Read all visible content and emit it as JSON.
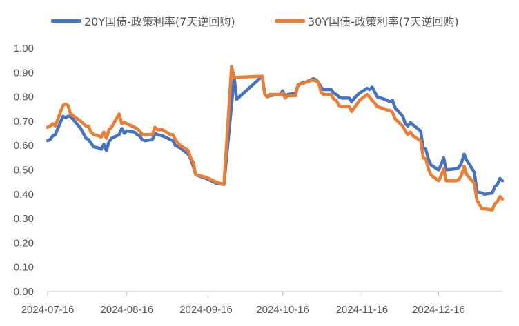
{
  "chart_data": {
    "type": "line",
    "title": "",
    "xlabel": "",
    "ylabel": "",
    "ylim": [
      0,
      1.0
    ],
    "xlim": [
      "2024-07-16",
      "2025-01-10"
    ],
    "grid": false,
    "legend_position": "top",
    "y_ticks": [
      "0.00",
      "0.10",
      "0.20",
      "0.30",
      "0.40",
      "0.50",
      "0.60",
      "0.70",
      "0.80",
      "0.90",
      "1.00"
    ],
    "x_ticks": [
      "2024-07-16",
      "2024-08-16",
      "2024-09-16",
      "2024-10-16",
      "2024-11-16",
      "2024-12-16"
    ],
    "series": [
      {
        "name": "20Y国债-政策利率(7天逆回购)",
        "color": "#4472C4",
        "points": [
          [
            "2024-07-16",
            0.62
          ],
          [
            "2024-07-17",
            0.625
          ],
          [
            "2024-07-18",
            0.64
          ],
          [
            "2024-07-19",
            0.645
          ],
          [
            "2024-07-22",
            0.72
          ],
          [
            "2024-07-23",
            0.715
          ],
          [
            "2024-07-24",
            0.72
          ],
          [
            "2024-07-25",
            0.72
          ],
          [
            "2024-07-29",
            0.67
          ],
          [
            "2024-07-31",
            0.63
          ],
          [
            "2024-08-01",
            0.625
          ],
          [
            "2024-08-02",
            0.61
          ],
          [
            "2024-08-03",
            0.595
          ],
          [
            "2024-08-05",
            0.59
          ],
          [
            "2024-08-06",
            0.585
          ],
          [
            "2024-08-07",
            0.605
          ],
          [
            "2024-08-08",
            0.58
          ],
          [
            "2024-08-09",
            0.615
          ],
          [
            "2024-08-10",
            0.63
          ],
          [
            "2024-08-13",
            0.645
          ],
          [
            "2024-08-14",
            0.67
          ],
          [
            "2024-08-15",
            0.65
          ],
          [
            "2024-08-16",
            0.66
          ],
          [
            "2024-08-19",
            0.655
          ],
          [
            "2024-08-20",
            0.645
          ],
          [
            "2024-08-21",
            0.64
          ],
          [
            "2024-08-22",
            0.625
          ],
          [
            "2024-08-23",
            0.62
          ],
          [
            "2024-08-26",
            0.625
          ],
          [
            "2024-08-27",
            0.65
          ],
          [
            "2024-08-28",
            0.645
          ],
          [
            "2024-08-30",
            0.64
          ],
          [
            "2024-09-02",
            0.625
          ],
          [
            "2024-09-03",
            0.62
          ],
          [
            "2024-09-04",
            0.6
          ],
          [
            "2024-09-05",
            0.595
          ],
          [
            "2024-09-06",
            0.59
          ],
          [
            "2024-09-09",
            0.565
          ],
          [
            "2024-09-10",
            0.545
          ],
          [
            "2024-09-11",
            0.515
          ],
          [
            "2024-09-12",
            0.48
          ],
          [
            "2024-09-16",
            0.465
          ],
          [
            "2024-09-18",
            0.455
          ],
          [
            "2024-09-20",
            0.445
          ],
          [
            "2024-09-23",
            0.44
          ],
          [
            "2024-09-27",
            0.88
          ],
          [
            "2024-09-28",
            0.79
          ],
          [
            "2024-10-08",
            0.885
          ],
          [
            "2024-10-09",
            0.81
          ],
          [
            "2024-10-10",
            0.8
          ],
          [
            "2024-10-11",
            0.805
          ],
          [
            "2024-10-14",
            0.81
          ],
          [
            "2024-10-15",
            0.81
          ],
          [
            "2024-10-16",
            0.825
          ],
          [
            "2024-10-17",
            0.8
          ],
          [
            "2024-10-18",
            0.81
          ],
          [
            "2024-10-21",
            0.815
          ],
          [
            "2024-10-22",
            0.845
          ],
          [
            "2024-10-23",
            0.855
          ],
          [
            "2024-10-24",
            0.86
          ],
          [
            "2024-10-25",
            0.86
          ],
          [
            "2024-10-28",
            0.875
          ],
          [
            "2024-10-29",
            0.87
          ],
          [
            "2024-10-30",
            0.86
          ],
          [
            "2024-10-31",
            0.84
          ],
          [
            "2024-11-01",
            0.83
          ],
          [
            "2024-11-04",
            0.83
          ],
          [
            "2024-11-05",
            0.815
          ],
          [
            "2024-11-06",
            0.81
          ],
          [
            "2024-11-07",
            0.8
          ],
          [
            "2024-11-08",
            0.795
          ],
          [
            "2024-11-11",
            0.795
          ],
          [
            "2024-11-12",
            0.78
          ],
          [
            "2024-11-13",
            0.795
          ],
          [
            "2024-11-14",
            0.805
          ],
          [
            "2024-11-15",
            0.815
          ],
          [
            "2024-11-18",
            0.835
          ],
          [
            "2024-11-19",
            0.83
          ],
          [
            "2024-11-20",
            0.84
          ],
          [
            "2024-11-21",
            0.82
          ],
          [
            "2024-11-22",
            0.8
          ],
          [
            "2024-11-25",
            0.79
          ],
          [
            "2024-11-26",
            0.785
          ],
          [
            "2024-11-27",
            0.78
          ],
          [
            "2024-11-28",
            0.785
          ],
          [
            "2024-11-29",
            0.755
          ],
          [
            "2024-12-02",
            0.72
          ],
          [
            "2024-12-03",
            0.69
          ],
          [
            "2024-12-04",
            0.68
          ],
          [
            "2024-12-05",
            0.695
          ],
          [
            "2024-12-06",
            0.685
          ],
          [
            "2024-12-09",
            0.66
          ],
          [
            "2024-12-10",
            0.59
          ],
          [
            "2024-12-11",
            0.585
          ],
          [
            "2024-12-12",
            0.545
          ],
          [
            "2024-12-13",
            0.52
          ],
          [
            "2024-12-16",
            0.5
          ],
          [
            "2024-12-17",
            0.52
          ],
          [
            "2024-12-18",
            0.55
          ],
          [
            "2024-12-19",
            0.5
          ],
          [
            "2024-12-23",
            0.505
          ],
          [
            "2024-12-24",
            0.51
          ],
          [
            "2024-12-25",
            0.53
          ],
          [
            "2024-12-26",
            0.565
          ],
          [
            "2024-12-27",
            0.54
          ],
          [
            "2024-12-30",
            0.49
          ],
          [
            "2024-12-31",
            0.41
          ],
          [
            "2025-01-02",
            0.405
          ],
          [
            "2025-01-03",
            0.4
          ],
          [
            "2025-01-06",
            0.405
          ],
          [
            "2025-01-07",
            0.43
          ],
          [
            "2025-01-08",
            0.44
          ],
          [
            "2025-01-09",
            0.465
          ],
          [
            "2025-01-10",
            0.455
          ]
        ]
      },
      {
        "name": "30Y国债-政策利率(7天逆回购)",
        "color": "#ED7D31",
        "points": [
          [
            "2024-07-16",
            0.675
          ],
          [
            "2024-07-17",
            0.68
          ],
          [
            "2024-07-18",
            0.69
          ],
          [
            "2024-07-19",
            0.68
          ],
          [
            "2024-07-22",
            0.765
          ],
          [
            "2024-07-23",
            0.77
          ],
          [
            "2024-07-24",
            0.765
          ],
          [
            "2024-07-25",
            0.73
          ],
          [
            "2024-07-29",
            0.7
          ],
          [
            "2024-07-31",
            0.68
          ],
          [
            "2024-08-01",
            0.68
          ],
          [
            "2024-08-02",
            0.655
          ],
          [
            "2024-08-03",
            0.645
          ],
          [
            "2024-08-05",
            0.64
          ],
          [
            "2024-08-06",
            0.635
          ],
          [
            "2024-08-07",
            0.655
          ],
          [
            "2024-08-08",
            0.63
          ],
          [
            "2024-08-09",
            0.665
          ],
          [
            "2024-08-10",
            0.675
          ],
          [
            "2024-08-13",
            0.73
          ],
          [
            "2024-08-14",
            0.69
          ],
          [
            "2024-08-15",
            0.695
          ],
          [
            "2024-08-16",
            0.69
          ],
          [
            "2024-08-19",
            0.675
          ],
          [
            "2024-08-20",
            0.67
          ],
          [
            "2024-08-21",
            0.66
          ],
          [
            "2024-08-22",
            0.645
          ],
          [
            "2024-08-23",
            0.645
          ],
          [
            "2024-08-26",
            0.645
          ],
          [
            "2024-08-27",
            0.675
          ],
          [
            "2024-08-28",
            0.665
          ],
          [
            "2024-08-30",
            0.665
          ],
          [
            "2024-09-02",
            0.645
          ],
          [
            "2024-09-03",
            0.645
          ],
          [
            "2024-09-04",
            0.625
          ],
          [
            "2024-09-05",
            0.61
          ],
          [
            "2024-09-06",
            0.6
          ],
          [
            "2024-09-09",
            0.58
          ],
          [
            "2024-09-10",
            0.55
          ],
          [
            "2024-09-11",
            0.53
          ],
          [
            "2024-09-12",
            0.48
          ],
          [
            "2024-09-16",
            0.47
          ],
          [
            "2024-09-18",
            0.46
          ],
          [
            "2024-09-20",
            0.45
          ],
          [
            "2024-09-23",
            0.44
          ],
          [
            "2024-09-26",
            0.925
          ],
          [
            "2024-09-27",
            0.88
          ],
          [
            "2024-10-08",
            0.885
          ],
          [
            "2024-10-09",
            0.81
          ],
          [
            "2024-10-10",
            0.8
          ],
          [
            "2024-10-11",
            0.81
          ],
          [
            "2024-10-14",
            0.81
          ],
          [
            "2024-10-15",
            0.81
          ],
          [
            "2024-10-16",
            0.815
          ],
          [
            "2024-10-17",
            0.795
          ],
          [
            "2024-10-18",
            0.805
          ],
          [
            "2024-10-21",
            0.805
          ],
          [
            "2024-10-22",
            0.85
          ],
          [
            "2024-10-23",
            0.855
          ],
          [
            "2024-10-24",
            0.855
          ],
          [
            "2024-10-25",
            0.86
          ],
          [
            "2024-10-28",
            0.87
          ],
          [
            "2024-10-29",
            0.865
          ],
          [
            "2024-10-30",
            0.86
          ],
          [
            "2024-10-31",
            0.82
          ],
          [
            "2024-11-01",
            0.81
          ],
          [
            "2024-11-04",
            0.81
          ],
          [
            "2024-11-05",
            0.79
          ],
          [
            "2024-11-06",
            0.785
          ],
          [
            "2024-11-07",
            0.765
          ],
          [
            "2024-11-08",
            0.76
          ],
          [
            "2024-11-11",
            0.76
          ],
          [
            "2024-11-12",
            0.74
          ],
          [
            "2024-11-13",
            0.755
          ],
          [
            "2024-11-14",
            0.77
          ],
          [
            "2024-11-15",
            0.785
          ],
          [
            "2024-11-18",
            0.81
          ],
          [
            "2024-11-19",
            0.8
          ],
          [
            "2024-11-20",
            0.785
          ],
          [
            "2024-11-21",
            0.775
          ],
          [
            "2024-11-22",
            0.76
          ],
          [
            "2024-11-25",
            0.75
          ],
          [
            "2024-11-26",
            0.745
          ],
          [
            "2024-11-27",
            0.745
          ],
          [
            "2024-11-28",
            0.735
          ],
          [
            "2024-11-29",
            0.71
          ],
          [
            "2024-12-02",
            0.68
          ],
          [
            "2024-12-03",
            0.66
          ],
          [
            "2024-12-04",
            0.645
          ],
          [
            "2024-12-05",
            0.655
          ],
          [
            "2024-12-06",
            0.64
          ],
          [
            "2024-12-09",
            0.62
          ],
          [
            "2024-12-10",
            0.55
          ],
          [
            "2024-12-11",
            0.545
          ],
          [
            "2024-12-12",
            0.505
          ],
          [
            "2024-12-13",
            0.48
          ],
          [
            "2024-12-16",
            0.455
          ],
          [
            "2024-12-17",
            0.475
          ],
          [
            "2024-12-18",
            0.505
          ],
          [
            "2024-12-19",
            0.455
          ],
          [
            "2024-12-23",
            0.455
          ],
          [
            "2024-12-24",
            0.46
          ],
          [
            "2024-12-25",
            0.48
          ],
          [
            "2024-12-26",
            0.515
          ],
          [
            "2024-12-27",
            0.48
          ],
          [
            "2024-12-30",
            0.445
          ],
          [
            "2024-12-31",
            0.375
          ],
          [
            "2025-01-02",
            0.34
          ],
          [
            "2025-01-03",
            0.34
          ],
          [
            "2025-01-06",
            0.335
          ],
          [
            "2025-01-07",
            0.36
          ],
          [
            "2025-01-08",
            0.37
          ],
          [
            "2025-01-09",
            0.39
          ],
          [
            "2025-01-10",
            0.38
          ]
        ]
      }
    ]
  }
}
